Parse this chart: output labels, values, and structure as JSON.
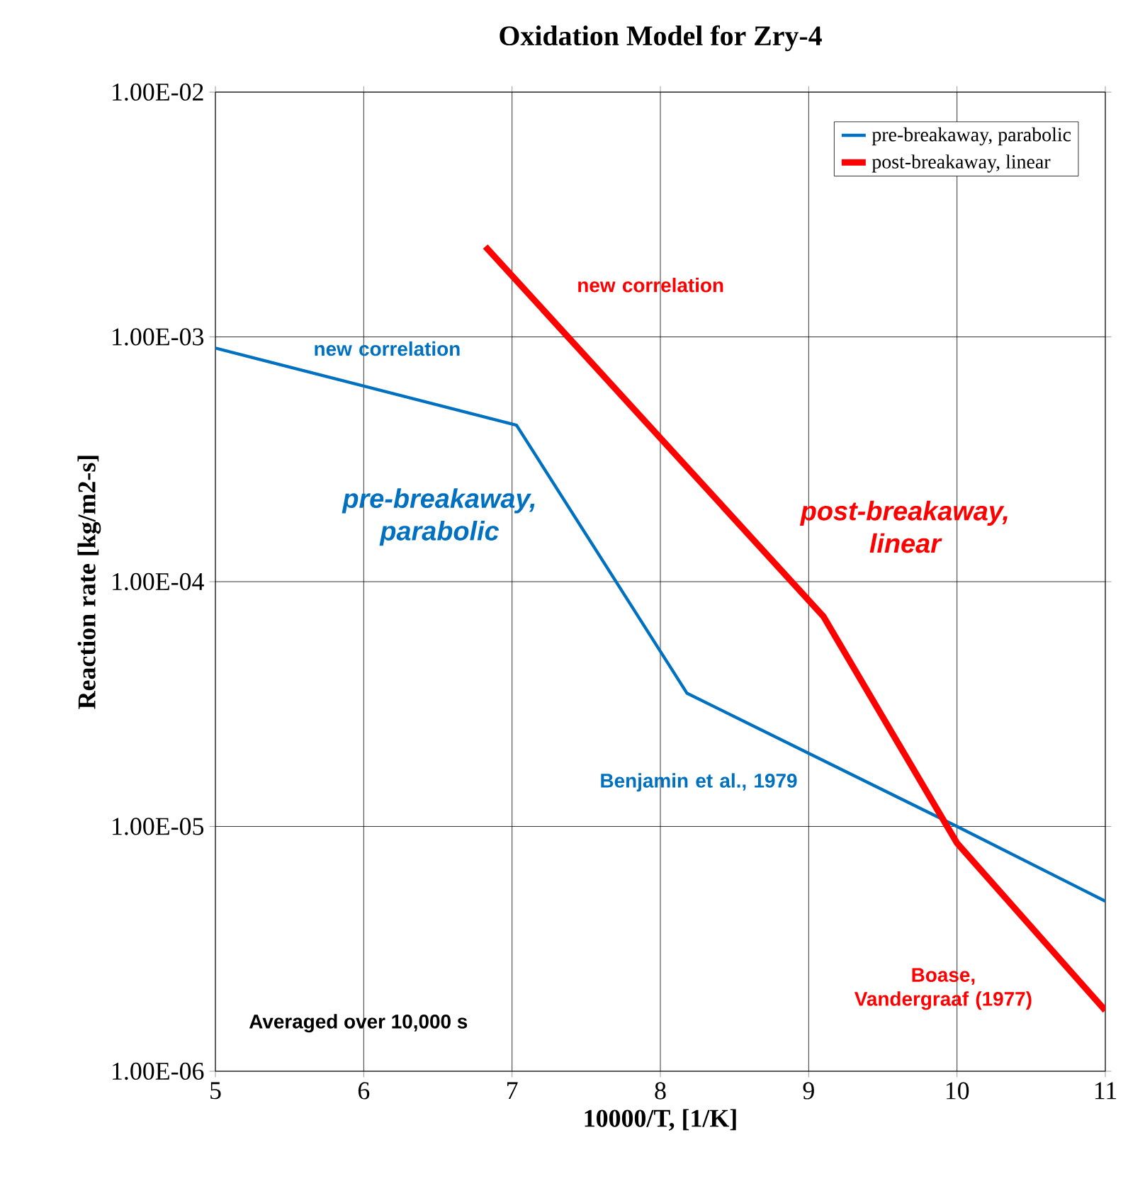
{
  "chart_data": {
    "type": "line",
    "title": "Oxidation Model for Zry-4",
    "xlabel": "10000/T, [1/K]",
    "ylabel": "Reaction rate [kg/m2-s]",
    "series": [
      {
        "name": "pre-breakaway, parabolic",
        "color": "#0070c0",
        "x": [
          5,
          7.03,
          8.18,
          10,
          11
        ],
        "values": [
          0.0009,
          0.000436,
          3.5e-05,
          1e-05,
          4.95e-06
        ]
      },
      {
        "name": "post-breakaway, linear",
        "color": "#ff0000",
        "x": [
          6.82,
          9.1,
          10,
          11
        ],
        "values": [
          0.00234,
          7.2e-05,
          8.55e-06,
          1.77e-06
        ]
      }
    ],
    "xlim": [
      5,
      11
    ],
    "xticks": [
      5,
      6,
      7,
      8,
      9,
      10,
      11
    ],
    "ylim": [
      1e-06,
      0.01
    ],
    "log": "y",
    "yticks": [
      {
        "value": 1e-06,
        "label": "1.00E-06"
      },
      {
        "value": 1e-05,
        "label": "1.00E-05"
      },
      {
        "value": 0.0001,
        "label": "1.00E-04"
      },
      {
        "value": 0.001,
        "label": "1.00E-03"
      },
      {
        "value": 0.01,
        "label": "1.00E-02"
      }
    ],
    "grid": true,
    "legend": "top right",
    "marker": "none",
    "line_style": "solid",
    "annotations": [
      "new correlation",
      "new correlation",
      "pre-breakaway, parabolic",
      "post-breakaway, linear",
      "Benjamin et al., 1979",
      "Boase, Vandergraaf (1977)",
      "Averaged over 10,000 s"
    ]
  }
}
